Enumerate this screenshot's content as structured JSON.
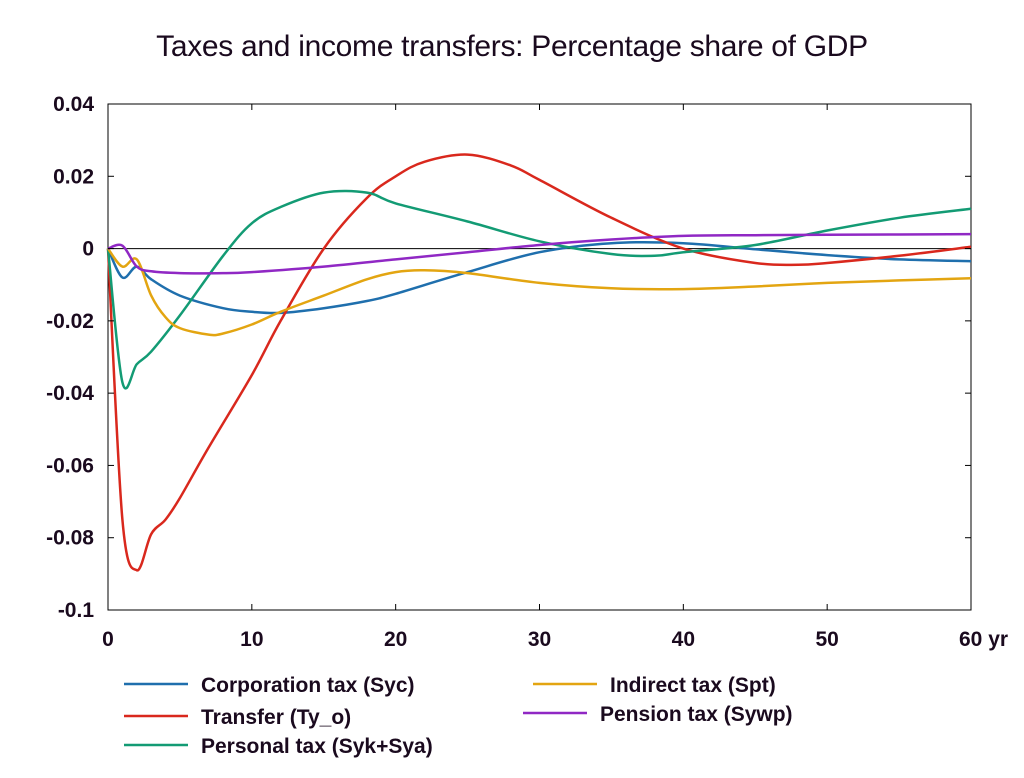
{
  "chart_data": {
    "type": "line",
    "title": "Taxes and income transfers: Percentage share of GDP",
    "xlabel": "",
    "ylabel": "",
    "xlim": [
      0,
      60
    ],
    "ylim": [
      -0.1,
      0.04
    ],
    "x_unit": "yr",
    "x_ticks": [
      "0",
      "10",
      "20",
      "30",
      "40",
      "50",
      "60 yr"
    ],
    "y_ticks": [
      "0.04",
      "0.02",
      "0",
      "-0.02",
      "-0.04",
      "-0.06",
      "-0.08",
      "-0.1"
    ],
    "zero_line": true,
    "legend_position": "bottom",
    "series": [
      {
        "name": "Corporation tax (Syc)",
        "color": "#1f6fad",
        "x": [
          0,
          1,
          2,
          3,
          5,
          8,
          10,
          12,
          15,
          18,
          20,
          25,
          30,
          35,
          40,
          45,
          50,
          55,
          60
        ],
        "y": [
          0,
          -0.008,
          -0.005,
          -0.0085,
          -0.013,
          -0.0165,
          -0.0175,
          -0.0178,
          -0.0165,
          -0.0145,
          -0.0125,
          -0.0065,
          -0.001,
          0.0015,
          0.0015,
          -0.0002,
          -0.0018,
          -0.003,
          -0.0035
        ]
      },
      {
        "name": "Transfer (Ty_o)",
        "color": "#d9281d",
        "x": [
          0,
          1,
          2,
          3,
          4,
          5,
          7,
          10,
          12,
          15,
          18,
          20,
          22,
          25,
          28,
          30,
          35,
          40,
          45,
          48,
          50,
          55,
          60
        ],
        "y": [
          0,
          -0.075,
          -0.089,
          -0.079,
          -0.075,
          -0.069,
          -0.055,
          -0.035,
          -0.02,
          0.0,
          0.014,
          0.02,
          0.024,
          0.026,
          0.023,
          0.019,
          0.0085,
          0.0,
          -0.004,
          -0.0045,
          -0.004,
          -0.002,
          0.0005
        ]
      },
      {
        "name": "Personal tax (Syk+Sya)",
        "color": "#139b74",
        "x": [
          0,
          1,
          2,
          3,
          5,
          8,
          10,
          12,
          15,
          18,
          20,
          25,
          30,
          35,
          38,
          40,
          45,
          50,
          55,
          60
        ],
        "y": [
          0,
          -0.037,
          -0.032,
          -0.0285,
          -0.0185,
          -0.002,
          0.007,
          0.0115,
          0.0155,
          0.0155,
          0.0125,
          0.0075,
          0.002,
          -0.0015,
          -0.002,
          -0.001,
          0.001,
          0.005,
          0.0085,
          0.011
        ]
      },
      {
        "name": "Indirect tax (Spt)",
        "color": "#e3a511",
        "x": [
          0,
          1,
          2,
          3,
          4,
          5,
          7,
          8,
          10,
          12,
          15,
          18,
          20,
          22,
          25,
          30,
          35,
          40,
          45,
          50,
          55,
          60
        ],
        "y": [
          0,
          -0.005,
          -0.003,
          -0.013,
          -0.019,
          -0.022,
          -0.0238,
          -0.0235,
          -0.021,
          -0.0175,
          -0.013,
          -0.0085,
          -0.0065,
          -0.006,
          -0.0068,
          -0.0095,
          -0.011,
          -0.0112,
          -0.0105,
          -0.0095,
          -0.0088,
          -0.0082
        ]
      },
      {
        "name": "Pension tax (Sywp)",
        "color": "#9028c4",
        "x": [
          0,
          1,
          2,
          3,
          5,
          8,
          10,
          15,
          20,
          25,
          30,
          35,
          40,
          45,
          50,
          55,
          60
        ],
        "y": [
          0,
          0.0008,
          -0.005,
          -0.0063,
          -0.0068,
          -0.0068,
          -0.0065,
          -0.005,
          -0.003,
          -0.001,
          0.001,
          0.0025,
          0.0035,
          0.0037,
          0.0038,
          0.0039,
          0.004
        ]
      }
    ]
  }
}
